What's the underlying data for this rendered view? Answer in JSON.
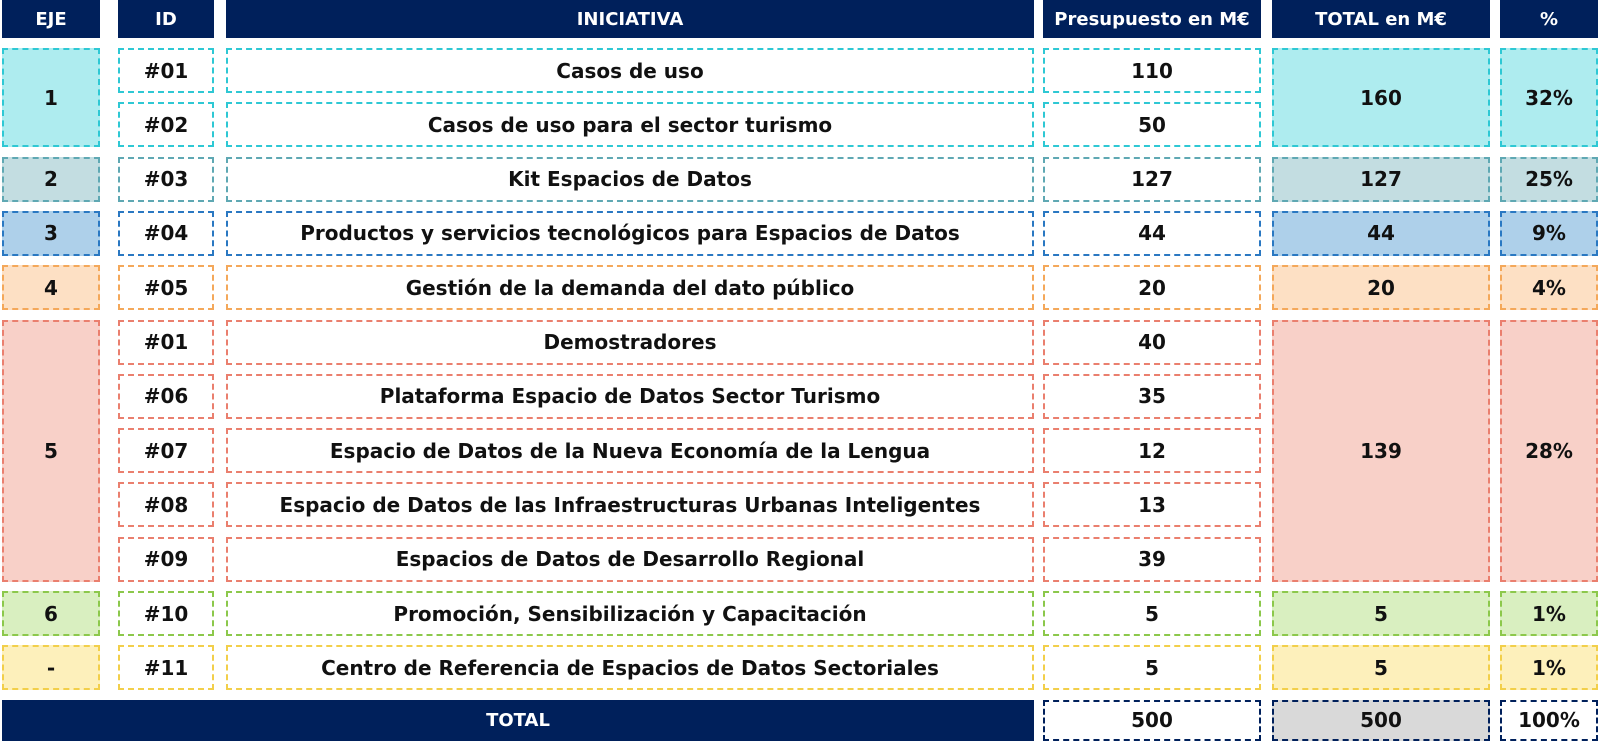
{
  "chart_data": {
    "type": "table",
    "headers": [
      "EJE",
      "ID",
      "INICIATIVA",
      "Presupuesto en M€",
      "TOTAL en M€",
      "%"
    ],
    "groups": [
      {
        "eje": "1",
        "total": "160",
        "pct": "32%",
        "border": "#2ec8d4",
        "fill": "#aeecef",
        "rows": [
          {
            "id": "#01",
            "iniciativa": "Casos de uso",
            "presupuesto": "110"
          },
          {
            "id": "#02",
            "iniciativa": "Casos de uso para el sector turismo",
            "presupuesto": "50"
          }
        ]
      },
      {
        "eje": "2",
        "total": "127",
        "pct": "25%",
        "border": "#5fa8b3",
        "fill": "#c3dde1",
        "rows": [
          {
            "id": "#03",
            "iniciativa": "Kit Espacios de Datos",
            "presupuesto": "127"
          }
        ]
      },
      {
        "eje": "3",
        "total": "44",
        "pct": "9%",
        "border": "#2a78c2",
        "fill": "#aed0ea",
        "rows": [
          {
            "id": "#04",
            "iniciativa": "Productos y servicios tecnológicos para Espacios de Datos",
            "presupuesto": "44"
          }
        ]
      },
      {
        "eje": "4",
        "total": "20",
        "pct": "4%",
        "border": "#f4a85a",
        "fill": "#fde0c4",
        "rows": [
          {
            "id": "#05",
            "iniciativa": "Gestión de la demanda del dato público",
            "presupuesto": "20"
          }
        ]
      },
      {
        "eje": "5",
        "total": "139",
        "pct": "28%",
        "border": "#ea7f6e",
        "fill": "#f8d0c8",
        "rows": [
          {
            "id": "#01",
            "iniciativa": "Demostradores",
            "presupuesto": "40"
          },
          {
            "id": "#06",
            "iniciativa": "Plataforma Espacio de Datos Sector Turismo",
            "presupuesto": "35"
          },
          {
            "id": "#07",
            "iniciativa": "Espacio de Datos de la Nueva Economía de la Lengua",
            "presupuesto": "12"
          },
          {
            "id": "#08",
            "iniciativa": "Espacio de Datos de las Infraestructuras Urbanas Inteligentes",
            "presupuesto": "13"
          },
          {
            "id": "#09",
            "iniciativa": "Espacios de Datos de Desarrollo Regional",
            "presupuesto": "39"
          }
        ]
      },
      {
        "eje": "6",
        "total": "5",
        "pct": "1%",
        "border": "#8cc84b",
        "fill": "#d9efc0",
        "rows": [
          {
            "id": "#10",
            "iniciativa": "Promoción, Sensibilización y Capacitación",
            "presupuesto": "5"
          }
        ]
      },
      {
        "eje": "-",
        "total": "5",
        "pct": "1%",
        "border": "#f2cf4a",
        "fill": "#fdf0bb",
        "rows": [
          {
            "id": "#11",
            "iniciativa": "Centro de Referencia de Espacios de Datos Sectoriales",
            "presupuesto": "5"
          }
        ]
      }
    ],
    "total_row": {
      "label": "TOTAL",
      "presupuesto": "500",
      "total": "500",
      "pct": "100%",
      "border": "#00205b",
      "total_fill": "#d9d9d9"
    },
    "header_color": "#00205b"
  }
}
